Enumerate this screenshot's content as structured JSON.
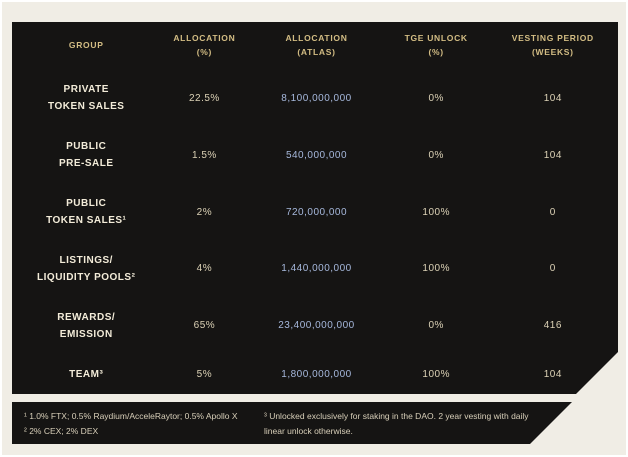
{
  "colors": {
    "page_background": "#f0ede5",
    "panel_background": "#151413",
    "header_text": "#d3bd84",
    "group_label_text": "#f3ecd9",
    "value_text": "#dcd2b6",
    "atlas_value_text": "#a6b8dc",
    "footnote_text": "#d8cfb9"
  },
  "table": {
    "headers": [
      "GROUP",
      "ALLOCATION\n(%)",
      "ALLOCATION\n(ATLAS)",
      "TGE UNLOCK\n(%)",
      "VESTING PERIOD\n(WEEKS)"
    ],
    "rows": [
      {
        "group": "PRIVATE\nTOKEN SALES",
        "allocation_pct": "22.5%",
        "allocation_atlas": "8,100,000,000",
        "tge_unlock_pct": "0%",
        "vesting_weeks": "104"
      },
      {
        "group": "PUBLIC\nPRE-SALE",
        "allocation_pct": "1.5%",
        "allocation_atlas": "540,000,000",
        "tge_unlock_pct": "0%",
        "vesting_weeks": "104"
      },
      {
        "group": "PUBLIC\nTOKEN SALES¹",
        "allocation_pct": "2%",
        "allocation_atlas": "720,000,000",
        "tge_unlock_pct": "100%",
        "vesting_weeks": "0"
      },
      {
        "group": "LISTINGS/\nLIQUIDITY POOLS²",
        "allocation_pct": "4%",
        "allocation_atlas": "1,440,000,000",
        "tge_unlock_pct": "100%",
        "vesting_weeks": "0"
      },
      {
        "group": "REWARDS/\nEMISSION",
        "allocation_pct": "65%",
        "allocation_atlas": "23,400,000,000",
        "tge_unlock_pct": "0%",
        "vesting_weeks": "416"
      },
      {
        "group": "TEAM³",
        "allocation_pct": "5%",
        "allocation_atlas": "1,800,000,000",
        "tge_unlock_pct": "100%",
        "vesting_weeks": "104"
      }
    ]
  },
  "footnotes": [
    "¹ 1.0% FTX; 0.5% Raydium/AcceleRaytor; 0.5% Apollo X",
    "² 2% CEX; 2% DEX",
    "³ Unlocked exclusively for staking in the DAO. 2 year vesting with daily linear unlock otherwise."
  ],
  "chart_data": {
    "type": "table",
    "title": "Token allocation, TGE unlock and vesting schedule (ATLAS)",
    "columns": [
      "GROUP",
      "ALLOCATION (%)",
      "ALLOCATION (ATLAS)",
      "TGE UNLOCK (%)",
      "VESTING PERIOD (WEEKS)"
    ],
    "rows": [
      [
        "PRIVATE TOKEN SALES",
        22.5,
        8100000000,
        0,
        104
      ],
      [
        "PUBLIC PRE-SALE",
        1.5,
        540000000,
        0,
        104
      ],
      [
        "PUBLIC TOKEN SALES¹",
        2,
        720000000,
        100,
        0
      ],
      [
        "LISTINGS/LIQUIDITY POOLS²",
        4,
        1440000000,
        100,
        0
      ],
      [
        "REWARDS/EMISSION",
        65,
        23400000000,
        0,
        416
      ],
      [
        "TEAM³",
        5,
        1800000000,
        100,
        104
      ]
    ],
    "footnotes": [
      "¹ 1.0% FTX; 0.5% Raydium/AcceleRaytor; 0.5% Apollo X",
      "² 2% CEX; 2% DEX",
      "³ Unlocked exclusively for staking in the DAO. 2 year vesting with daily linear unlock otherwise."
    ]
  }
}
